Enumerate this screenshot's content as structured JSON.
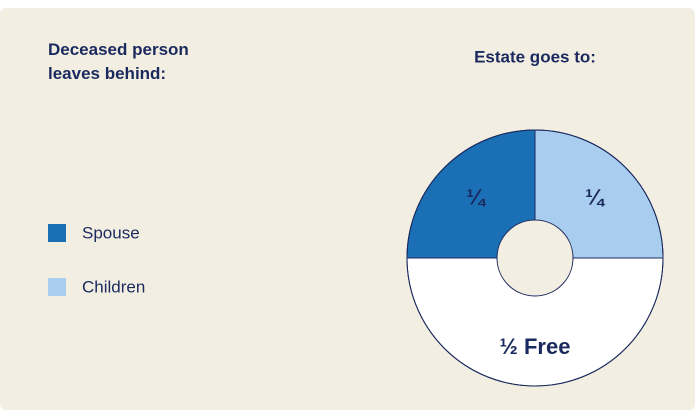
{
  "chart_data": {
    "type": "pie",
    "donut": true,
    "title": "Estate goes to:",
    "legend_title": "Deceased person leaves behind:",
    "categories": [
      "Spouse",
      "Children",
      null
    ],
    "values": [
      0.25,
      0.25,
      0.5
    ],
    "value_labels": [
      "¼",
      "¼",
      "½ Free"
    ],
    "colors": [
      "#1a6fb5",
      "#a9cdee",
      "#ffffff"
    ],
    "legend": "left"
  }
}
